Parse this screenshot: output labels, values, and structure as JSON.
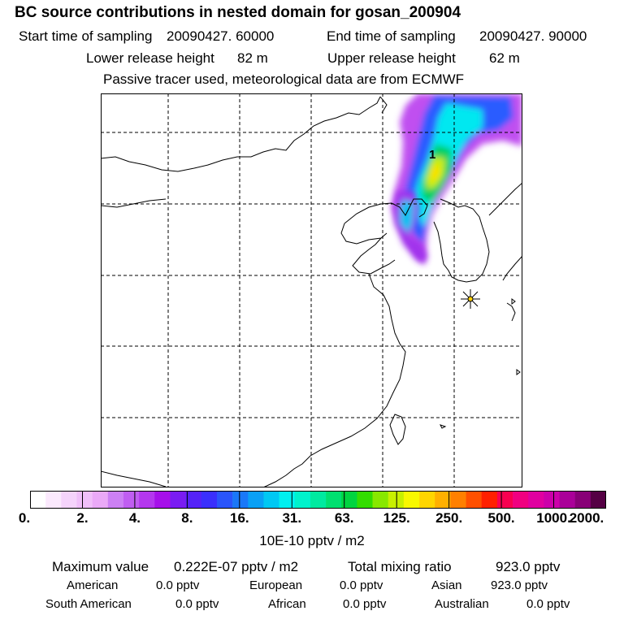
{
  "header": {
    "title": "BC  source contributions in nested domain for gosan_200904",
    "start_label": "Start time of sampling",
    "start_value": "20090427. 60000",
    "end_label": "End time of sampling",
    "end_value": "20090427. 90000",
    "lower_label": "Lower release height",
    "lower_value": "82 m",
    "upper_label": "Upper release height",
    "upper_value": "62 m",
    "note": "Passive tracer used, meteorological data are from ECMWF"
  },
  "map": {
    "marker_label": "1",
    "station_icon": "star-marker-icon"
  },
  "colorbar": {
    "colors": [
      "#ffffff",
      "#fbe9fd",
      "#f5d3fb",
      "#f0bff9",
      "#eaa9f7",
      "#cc80f4",
      "#c05ef1",
      "#b437ee",
      "#a610ea",
      "#7a1cf2",
      "#5522f8",
      "#3a2ffd",
      "#2a55fb",
      "#1a78f8",
      "#0aa0f5",
      "#00c8f3",
      "#00f0f0",
      "#00f2cc",
      "#00eaa0",
      "#00e070",
      "#00d440",
      "#33dd00",
      "#88e800",
      "#c8f000",
      "#f8f800",
      "#ffd500",
      "#ffb000",
      "#ff8000",
      "#ff5000",
      "#ff2000",
      "#f80050",
      "#f00080",
      "#e000a0",
      "#cc00aa",
      "#aa0099",
      "#880077",
      "#550044"
    ],
    "tick_labels": [
      "0.",
      "2.",
      "4.",
      "8.",
      "16.",
      "31.",
      "63.",
      "125.",
      "250.",
      "500.",
      "1000.",
      "2000."
    ],
    "unit": "10E-10 pptv / m2"
  },
  "summary": {
    "max_label": "Maximum value",
    "max_value": "0.222E-07 pptv / m2",
    "total_label": "Total mixing ratio",
    "total_value": "923.0 pptv",
    "american_label": "American",
    "american_value": "0.0 pptv",
    "european_label": "European",
    "european_value": "0.0 pptv",
    "asian_label": "Asian",
    "asian_value": "923.0 pptv",
    "south_american_label": "South American",
    "south_american_value": "0.0 pptv",
    "african_label": "African",
    "african_value": "0.0 pptv",
    "australian_label": "Australian",
    "australian_value": "0.0 pptv"
  }
}
